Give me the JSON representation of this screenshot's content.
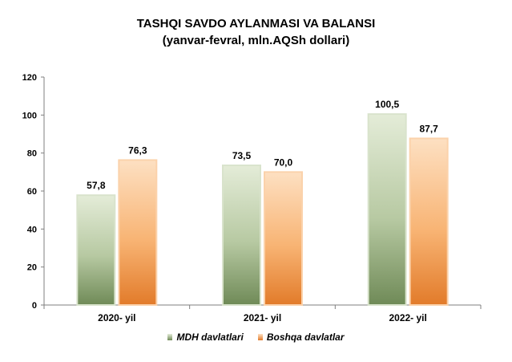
{
  "chart_data": {
    "type": "bar",
    "title": "TASHQI SAVDO AYLANMASI VA BALANSI",
    "subtitle": "(yanvar-fevral, mln.AQSh dollari)",
    "categories": [
      "2020- yil",
      "2021- yil",
      "2022- yil"
    ],
    "series": [
      {
        "name": "MDH davlatlari",
        "values": [
          57.8,
          73.5,
          100.5
        ],
        "labels": [
          "57,8",
          "73,5",
          "100,5"
        ],
        "color": "#a9bd94"
      },
      {
        "name": "Boshqa davlatlar",
        "values": [
          76.3,
          70.0,
          87.7
        ],
        "labels": [
          "76,3",
          "70,0",
          "87,7"
        ],
        "color": "#f5a860"
      }
    ],
    "ylim": [
      0,
      120
    ],
    "yticks": [
      0,
      20,
      40,
      60,
      80,
      100,
      120
    ],
    "legend_position": "bottom",
    "grid": false
  }
}
